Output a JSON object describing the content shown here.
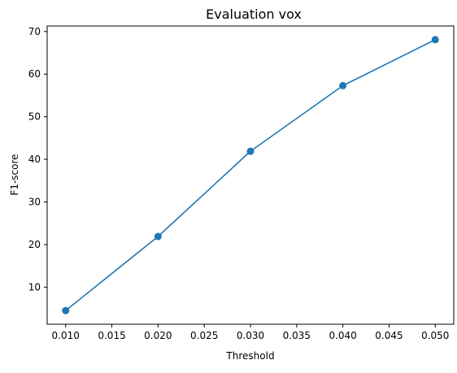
{
  "chart_data": {
    "type": "line",
    "title": "Evaluation vox",
    "xlabel": "Threshold",
    "ylabel": "F1-score",
    "xlim": [
      0.008,
      0.052
    ],
    "ylim": [
      1.3,
      71.3
    ],
    "xticks": [
      {
        "value": 0.01,
        "label": "0.010"
      },
      {
        "value": 0.015,
        "label": "0.015"
      },
      {
        "value": 0.02,
        "label": "0.020"
      },
      {
        "value": 0.025,
        "label": "0.025"
      },
      {
        "value": 0.03,
        "label": "0.030"
      },
      {
        "value": 0.035,
        "label": "0.035"
      },
      {
        "value": 0.04,
        "label": "0.040"
      },
      {
        "value": 0.045,
        "label": "0.045"
      },
      {
        "value": 0.05,
        "label": "0.050"
      }
    ],
    "yticks": [
      {
        "value": 10,
        "label": "10"
      },
      {
        "value": 20,
        "label": "20"
      },
      {
        "value": 30,
        "label": "30"
      },
      {
        "value": 40,
        "label": "40"
      },
      {
        "value": 50,
        "label": "50"
      },
      {
        "value": 60,
        "label": "60"
      },
      {
        "value": 70,
        "label": "70"
      }
    ],
    "grid": false,
    "series": [
      {
        "color": "#1f77b4",
        "marker": "circle",
        "x": [
          0.01,
          0.02,
          0.03,
          0.04,
          0.05
        ],
        "y": [
          4.5,
          21.9,
          41.9,
          57.3,
          68.1
        ]
      }
    ]
  }
}
